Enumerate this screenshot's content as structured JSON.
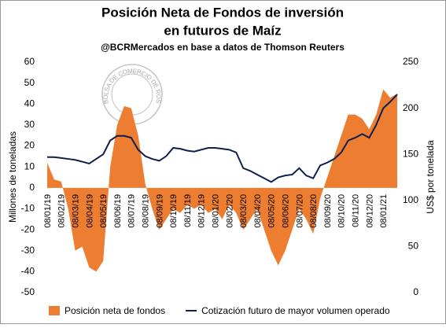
{
  "chart_data": {
    "type": "area-line",
    "title": [
      "Posición Neta de Fondos de inversión",
      "en futuros de Maíz"
    ],
    "subtitle": "@BCRMercados  en base a datos de Thomson Reuters",
    "logo_text": "BOLSA DE COMERCIO DE ROSARIO",
    "ylabel": "Millones de toneladas",
    "y2label": "US$ por tonelada",
    "categories": [
      "08/01/19",
      null,
      "08/02/19",
      null,
      "08/03/19",
      null,
      "08/04/19",
      null,
      "08/05/19",
      null,
      "08/06/19",
      null,
      "08/07/19",
      null,
      "08/08/19",
      null,
      "08/09/19",
      null,
      "08/10/19",
      null,
      "08/11/19",
      null,
      "08/12/19",
      null,
      "08/01/20",
      null,
      "08/02/20",
      null,
      "08/03/20",
      null,
      "08/04/20",
      null,
      "08/05/20",
      null,
      "08/06/20",
      null,
      "08/07/20",
      null,
      "08/08/20",
      null,
      "08/09/20",
      null,
      "08/10/20",
      null,
      "08/11/20",
      null,
      "08/12/20",
      null,
      "08/01/21",
      null,
      null
    ],
    "series": [
      {
        "name": "Posición neta de fondos",
        "color": "#ed7d31",
        "kind": "area",
        "values": [
          12,
          4,
          3,
          -10,
          -30,
          -28,
          -38,
          -40,
          -35,
          10,
          30,
          39,
          38,
          25,
          2,
          -10,
          -20,
          -15,
          -10,
          -12,
          -8,
          -10,
          -8,
          -12,
          -10,
          -15,
          -8,
          -12,
          -20,
          -15,
          -10,
          -20,
          -30,
          -37,
          -30,
          -20,
          -10,
          -15,
          -22,
          -5,
          5,
          15,
          25,
          35,
          35,
          33,
          28,
          35,
          47,
          43,
          45
        ]
      },
      {
        "name": "Cotización futuro de mayor volumen operado",
        "color": "#0f1f4b",
        "kind": "line",
        "axis": "y2",
        "values": [
          147,
          147,
          146,
          145,
          144,
          142,
          140,
          145,
          150,
          165,
          170,
          170,
          168,
          155,
          148,
          145,
          143,
          148,
          157,
          156,
          154,
          153,
          155,
          157,
          157,
          156,
          155,
          152,
          135,
          132,
          128,
          124,
          120,
          125,
          127,
          128,
          135,
          127,
          124,
          138,
          141,
          145,
          152,
          165,
          168,
          172,
          168,
          182,
          200,
          207,
          215
        ]
      }
    ],
    "ylim": [
      -50,
      60
    ],
    "yticks": [
      -50,
      -40,
      -30,
      -20,
      -10,
      0,
      10,
      20,
      30,
      40,
      50,
      60
    ],
    "y2lim": [
      0,
      250
    ],
    "y2ticks": [
      0,
      50,
      100,
      150,
      200,
      250
    ],
    "legend": "bottom"
  }
}
